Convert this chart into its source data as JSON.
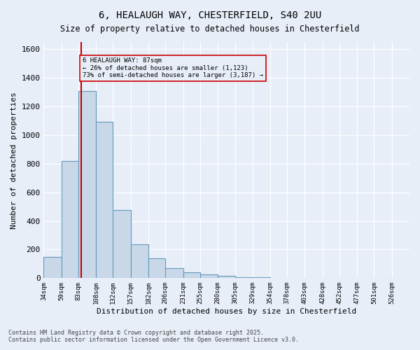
{
  "title_line1": "6, HEALAUGH WAY, CHESTERFIELD, S40 2UU",
  "title_line2": "Size of property relative to detached houses in Chesterfield",
  "xlabel": "Distribution of detached houses by size in Chesterfield",
  "ylabel": "Number of detached properties",
  "bar_color": "#c8d8e8",
  "bar_edge_color": "#6699bb",
  "bg_color": "#e8eef8",
  "grid_color": "#ffffff",
  "annotation_box_color": "#cc0000",
  "property_line_color": "#cc0000",
  "property_size": 87,
  "annotation_text_line1": "6 HEALAUGH WAY: 87sqm",
  "annotation_text_line2": "← 26% of detached houses are smaller (1,123)",
  "annotation_text_line3": "73% of semi-detached houses are larger (3,187) →",
  "footnote1": "Contains HM Land Registry data © Crown copyright and database right 2025.",
  "footnote2": "Contains public sector information licensed under the Open Government Licence v3.0.",
  "bin_labels": [
    "34sqm",
    "59sqm",
    "83sqm",
    "108sqm",
    "132sqm",
    "157sqm",
    "182sqm",
    "206sqm",
    "231sqm",
    "255sqm",
    "280sqm",
    "305sqm",
    "329sqm",
    "354sqm",
    "378sqm",
    "403sqm",
    "428sqm",
    "452sqm",
    "477sqm",
    "501sqm",
    "526sqm"
  ],
  "bin_edges": [
    34,
    59,
    83,
    108,
    132,
    157,
    182,
    206,
    231,
    255,
    280,
    305,
    329,
    354,
    378,
    403,
    428,
    452,
    477,
    501,
    526,
    551
  ],
  "bar_heights": [
    150,
    820,
    1310,
    1090,
    475,
    235,
    140,
    70,
    40,
    25,
    15,
    5,
    5,
    3,
    2,
    2,
    1,
    1,
    1,
    1,
    1
  ],
  "ylim": [
    0,
    1650
  ],
  "yticks": [
    0,
    200,
    400,
    600,
    800,
    1000,
    1200,
    1400,
    1600
  ]
}
